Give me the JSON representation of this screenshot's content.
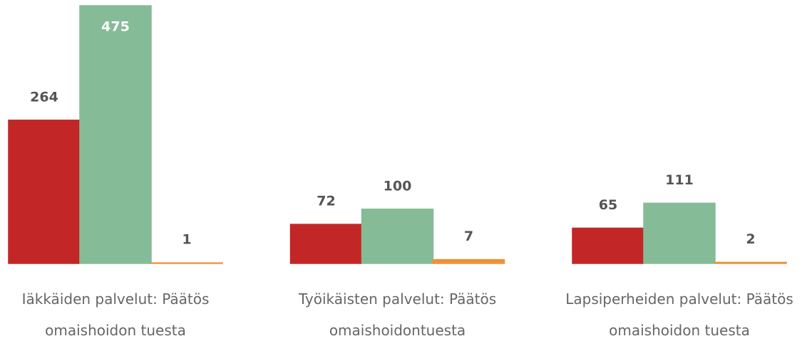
{
  "chart_data": {
    "type": "bar",
    "categories": [
      "Iäkkäiden palvelut: Päätös omaishoidon tuesta",
      "Työikäisten palvelut: Päätös omaishoidontuesta",
      "Lapsiperheiden palvelut: Päätös omaishoidon tuesta"
    ],
    "series": [
      {
        "color": "#c32626",
        "values": [
          264,
          72,
          65
        ]
      },
      {
        "color": "#86bb97",
        "values": [
          475,
          100,
          111
        ]
      },
      {
        "color": "#f0913a",
        "values": [
          1,
          7,
          2
        ]
      }
    ],
    "ylim": [
      0,
      475
    ]
  }
}
